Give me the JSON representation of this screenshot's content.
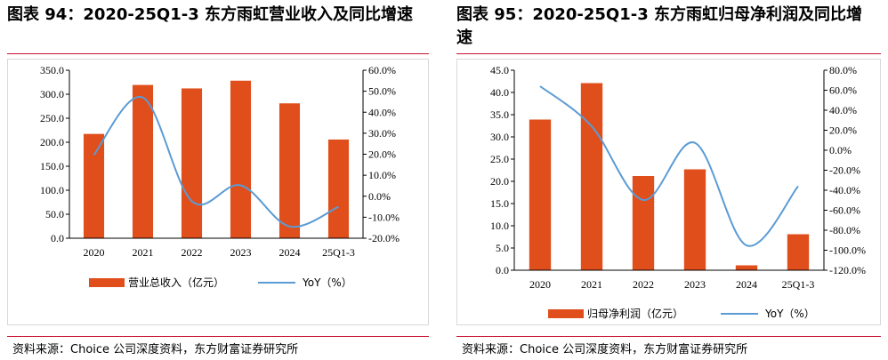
{
  "colors": {
    "bar": "#e04e1b",
    "line": "#5b9bd5",
    "accent_rule": "#c8102e"
  },
  "left": {
    "title": "图表 94：2020-25Q1-3 东方雨虹营业收入及同比增速",
    "source": "资料来源：Choice 公司深度资料，东方财富证券研究所",
    "chart_data": {
      "type": "bar",
      "categories": [
        "2020",
        "2021",
        "2022",
        "2023",
        "2024",
        "25Q1-3"
      ],
      "series": [
        {
          "name": "营业总收入（亿元）",
          "type": "bar",
          "axis": "left",
          "values": [
            217.3,
            319.3,
            312.1,
            328.2,
            281.0,
            205.6
          ]
        },
        {
          "name": "YoY（%）",
          "type": "line",
          "axis": "right",
          "values": [
            19.7,
            47.0,
            -2.3,
            5.2,
            -14.4,
            -5.0
          ]
        }
      ],
      "y_left": {
        "min": 0,
        "max": 350,
        "step": 50,
        "tick_labels": [
          "0.0",
          "50.0",
          "100.0",
          "150.0",
          "200.0",
          "250.0",
          "300.0",
          "350.0"
        ]
      },
      "y_right": {
        "min": -20,
        "max": 60,
        "step": 10,
        "tick_labels": [
          "-20.0%",
          "-10.0%",
          "0.0%",
          "10.0%",
          "20.0%",
          "30.0%",
          "40.0%",
          "50.0%",
          "60.0%"
        ]
      },
      "legend": [
        "营业总收入（亿元）",
        "YoY（%）"
      ],
      "legend_position": "bottom",
      "grid": false
    }
  },
  "right": {
    "title": "图表 95：2020-25Q1-3 东方雨虹归母净利润及同比增速",
    "source": "资料来源：Choice 公司深度资料，东方财富证券研究所",
    "chart_data": {
      "type": "bar",
      "categories": [
        "2020",
        "2021",
        "2022",
        "2023",
        "2024",
        "25Q1-3"
      ],
      "series": [
        {
          "name": "归母净利润（亿元）",
          "type": "bar",
          "axis": "left",
          "values": [
            33.9,
            42.1,
            21.2,
            22.7,
            1.1,
            8.1
          ]
        },
        {
          "name": "YoY（%）",
          "type": "line",
          "axis": "right",
          "values": [
            64.0,
            23.9,
            -49.8,
            7.4,
            -95.2,
            -36.0
          ]
        }
      ],
      "y_left": {
        "min": 0,
        "max": 45,
        "step": 5,
        "tick_labels": [
          "0.0",
          "5.0",
          "10.0",
          "15.0",
          "20.0",
          "25.0",
          "30.0",
          "35.0",
          "40.0",
          "45.0"
        ]
      },
      "y_right": {
        "min": -120,
        "max": 80,
        "step": 20,
        "tick_labels": [
          "-120.0%",
          "-100.0%",
          "-80.0%",
          "-60.0%",
          "-40.0%",
          "-20.0%",
          "0.0%",
          "20.0%",
          "40.0%",
          "60.0%",
          "80.0%"
        ]
      },
      "legend": [
        "归母净利润（亿元）",
        "YoY（%）"
      ],
      "legend_position": "bottom",
      "grid": false
    }
  }
}
